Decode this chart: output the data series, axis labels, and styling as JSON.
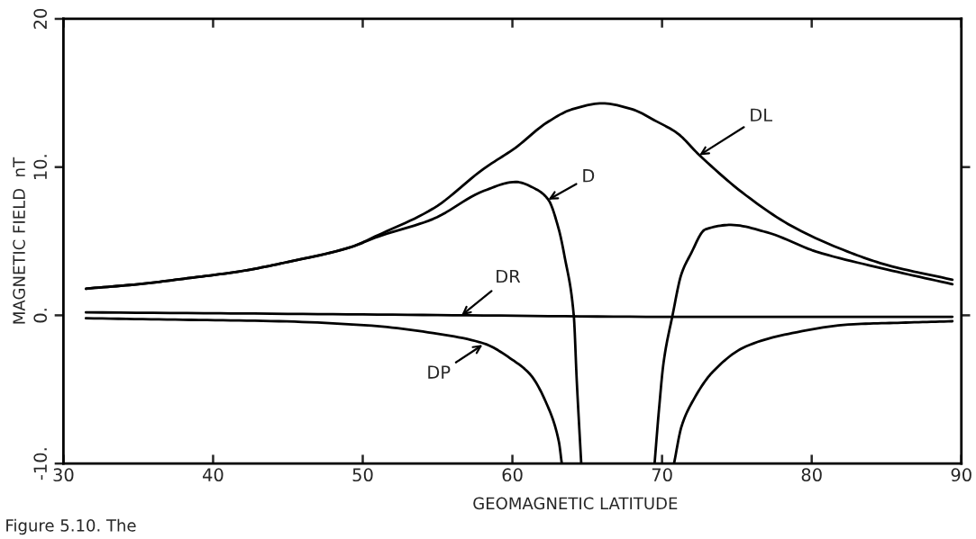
{
  "chart_data": {
    "type": "line",
    "xlabel": "GEOMAGNETIC LATITUDE",
    "ylabel": "MAGNETIC FIELD  nT",
    "xlim": [
      30,
      90
    ],
    "ylim": [
      -10,
      20
    ],
    "xticks": [
      30,
      40,
      50,
      60,
      70,
      80,
      90
    ],
    "yticks": [
      {
        "value": -10,
        "label": "-10."
      },
      {
        "value": 0,
        "label": "0."
      },
      {
        "value": 10,
        "label": "10."
      },
      20
    ],
    "series": [
      {
        "color": "#000000",
        "x": [
          31.5,
          35,
          38.3,
          42,
          45,
          49.2,
          51,
          54.7,
          58.1,
          60.2,
          62.3,
          64,
          66,
          68,
          69.6,
          71,
          72.5,
          75.6,
          78.7,
          82.4,
          85,
          89.4
        ],
        "values": [
          1.8,
          2.1,
          2.5,
          3.0,
          3.6,
          4.6,
          5.4,
          7.2,
          9.9,
          11.3,
          13.0,
          13.9,
          14.3,
          13.9,
          13.1,
          12.3,
          10.8,
          8.1,
          6.0,
          4.3,
          3.4,
          2.4
        ]
      },
      {
        "color": "#000000",
        "x": [
          31.5,
          35,
          38.3,
          42,
          45,
          49.2,
          51,
          54.7,
          58.1,
          60.2,
          61.6,
          62.4,
          63.1,
          63.5,
          64.1,
          64.3,
          64.6,
          67,
          69.5,
          69.8,
          70.1,
          70.7,
          71.3,
          71.9,
          72.9,
          74.6,
          77,
          80.3,
          85,
          89.4
        ],
        "values": [
          1.8,
          2.1,
          2.5,
          3.0,
          3.6,
          4.6,
          5.3,
          6.5,
          8.4,
          9.0,
          8.5,
          7.8,
          5.8,
          3.9,
          0.0,
          -4.4,
          -10,
          null,
          -10,
          -6.3,
          -3.2,
          0.0,
          2.8,
          4.1,
          5.8,
          6.1,
          5.6,
          4.3,
          3.1,
          2.1
        ]
      },
      {
        "color": "#000000",
        "x": [
          31.5,
          45,
          57,
          70,
          80,
          89.4
        ],
        "values": [
          0.2,
          0.1,
          0.0,
          -0.1,
          -0.1,
          -0.1
        ]
      },
      {
        "color": "#000000",
        "x": [
          31.5,
          38,
          44.4,
          50.6,
          54.7,
          58.1,
          60,
          61.2,
          62.3,
          63.1,
          63.3,
          67,
          70.8,
          71.3,
          72.1,
          73.4,
          75.6,
          78.7,
          82.8,
          86,
          89.4
        ],
        "values": [
          -0.2,
          -0.3,
          -0.4,
          -0.7,
          -1.2,
          -1.9,
          -3.0,
          -4.0,
          -6.0,
          -8.5,
          -10,
          null,
          -10,
          -7.5,
          -5.7,
          -3.8,
          -2.1,
          -1.2,
          -0.6,
          -0.5,
          -0.4
        ]
      }
    ],
    "annotations": [
      {
        "text": "DL",
        "x": 72.5,
        "y": 10.8
      },
      {
        "text": "D",
        "x": 62.4,
        "y": 7.8
      },
      {
        "text": "DR",
        "x": 56.6,
        "y": 0.0
      },
      {
        "text": "DP",
        "x": 58.0,
        "y": -2.0
      },
      "Figure 5.10. The"
    ]
  }
}
